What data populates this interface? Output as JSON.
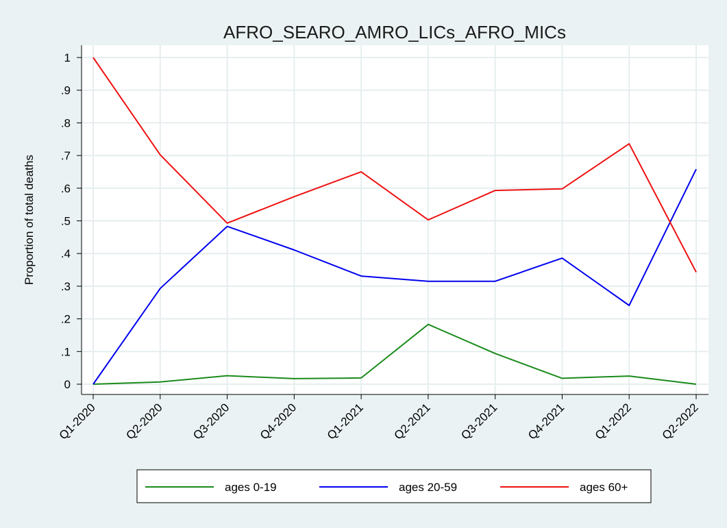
{
  "chart_data": {
    "type": "line",
    "title": "AFRO_SEARO_AMRO_LICs_AFRO_MICs",
    "xlabel": "",
    "ylabel": "Proportion of total deaths",
    "ylim": [
      0,
      1
    ],
    "yticks": [
      0,
      0.1,
      0.2,
      0.3,
      0.4,
      0.5,
      0.6,
      0.7,
      0.8,
      0.9,
      1
    ],
    "ytick_labels": [
      "0",
      ".1",
      ".2",
      ".3",
      ".4",
      ".5",
      ".6",
      ".7",
      ".8",
      ".9",
      "1"
    ],
    "categories": [
      "Q1-2020",
      "Q2-2020",
      "Q3-2020",
      "Q4-2020",
      "Q1-2021",
      "Q2-2021",
      "Q3-2021",
      "Q4-2021",
      "Q1-2022",
      "Q2-2022"
    ],
    "grid": true,
    "legend_position": "bottom",
    "series": [
      {
        "name": "ages 0-19",
        "color": "#1a8a1a",
        "values": [
          0.0,
          0.007,
          0.026,
          0.017,
          0.019,
          0.183,
          0.094,
          0.018,
          0.025,
          0.0
        ]
      },
      {
        "name": "ages 20-59",
        "color": "#0000ee",
        "values": [
          0.0,
          0.293,
          0.483,
          0.411,
          0.331,
          0.315,
          0.315,
          0.386,
          0.241,
          0.658
        ]
      },
      {
        "name": "ages 60+",
        "color": "#ee1111",
        "values": [
          1.0,
          0.702,
          0.493,
          0.574,
          0.65,
          0.503,
          0.593,
          0.598,
          0.736,
          0.343
        ]
      }
    ]
  }
}
